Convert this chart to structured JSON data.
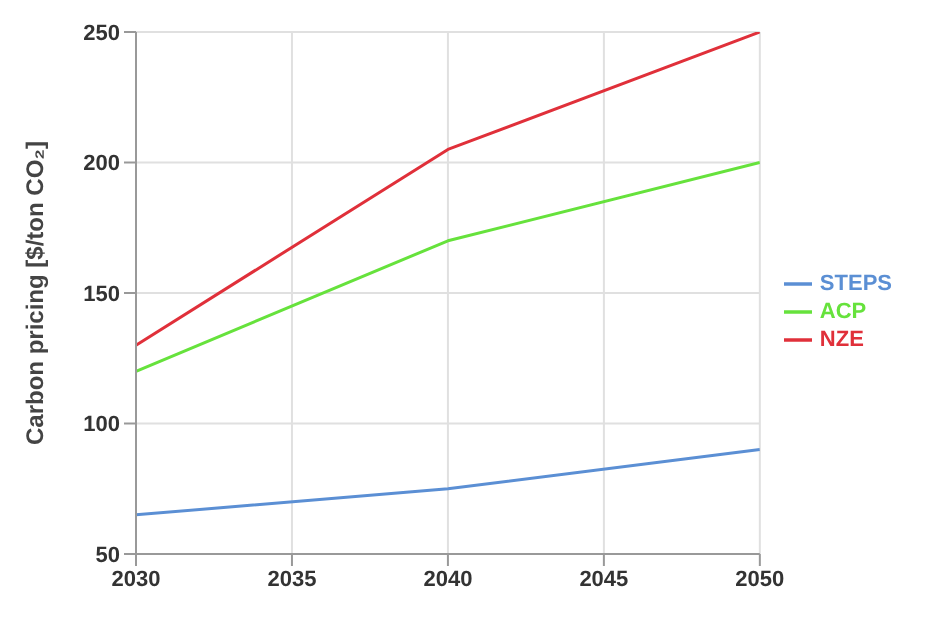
{
  "chart_data": {
    "type": "line",
    "ylabel": "Carbon pricing [$/ton CO₂]",
    "x": [
      2030,
      2040,
      2050
    ],
    "series": [
      {
        "name": "STEPS",
        "color": "#5b8fd4",
        "values": [
          65,
          75,
          90
        ]
      },
      {
        "name": "ACP",
        "color": "#66e23c",
        "values": [
          120,
          170,
          200
        ]
      },
      {
        "name": "NZE",
        "color": "#e0303a",
        "values": [
          130,
          205,
          250
        ]
      }
    ],
    "xlim": [
      2030,
      2050
    ],
    "xticks": [
      2030,
      2035,
      2040,
      2045,
      2050
    ],
    "ylim": [
      50,
      250
    ],
    "yticks": [
      50,
      100,
      150,
      200,
      250
    ],
    "grid": true,
    "legend": "right",
    "marker": "none",
    "line_style": "solid"
  }
}
